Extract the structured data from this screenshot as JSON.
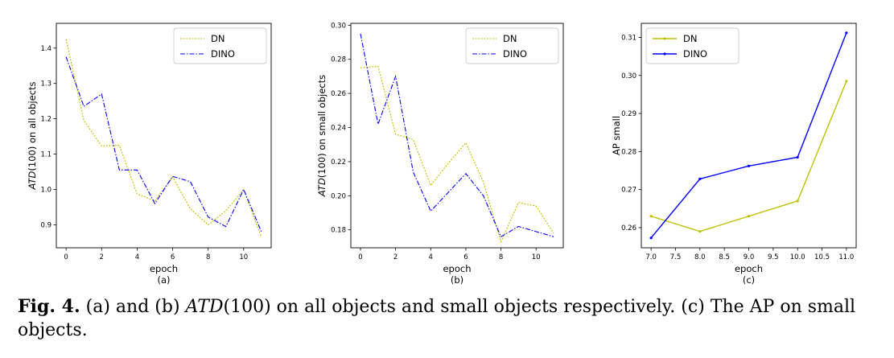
{
  "colors": {
    "DN": "#bfbf00",
    "DINO": "#0000ff"
  },
  "chart_data": [
    {
      "type": "line",
      "label": "(a)",
      "xlabel": "epoch",
      "ylabel_italic": "ATD",
      "ylabel_rest": "(100) on all objects",
      "xlim": [
        -0.55,
        11.55
      ],
      "ylim": [
        0.835,
        1.47
      ],
      "xticks": [
        0,
        2,
        4,
        6,
        8,
        10
      ],
      "yticks": [
        0.9,
        1.0,
        1.1,
        1.2,
        1.3,
        1.4
      ],
      "xtick_labels": [
        "0",
        "2",
        "4",
        "6",
        "8",
        "10"
      ],
      "ytick_labels": [
        "0.9",
        "1.0",
        "1.1",
        "1.2",
        "1.3",
        "1.4"
      ],
      "legend": "top-right",
      "markers": false,
      "series": [
        {
          "name": "DN",
          "style": "dotted",
          "x": [
            0,
            1,
            2,
            3,
            4,
            5,
            6,
            7,
            8,
            9,
            10,
            11
          ],
          "y": [
            1.425,
            1.195,
            1.123,
            1.125,
            0.987,
            0.968,
            1.035,
            0.945,
            0.9,
            0.94,
            1.0,
            0.865
          ]
        },
        {
          "name": "DINO",
          "style": "dashdot",
          "x": [
            0,
            1,
            2,
            3,
            4,
            5,
            6,
            7,
            8,
            9,
            10,
            11
          ],
          "y": [
            1.375,
            1.235,
            1.27,
            1.055,
            1.055,
            0.96,
            1.037,
            1.022,
            0.922,
            0.895,
            1.0,
            0.88
          ]
        }
      ]
    },
    {
      "type": "line",
      "label": "(b)",
      "xlabel": "epoch",
      "ylabel_italic": "ATD",
      "ylabel_rest": "(100) on small objects",
      "xlim": [
        -0.55,
        11.55
      ],
      "ylim": [
        0.1695,
        0.3011
      ],
      "xticks": [
        0,
        2,
        4,
        6,
        8,
        10
      ],
      "yticks": [
        0.18,
        0.2,
        0.22,
        0.24,
        0.26,
        0.28,
        0.3
      ],
      "xtick_labels": [
        "0",
        "2",
        "4",
        "6",
        "8",
        "10"
      ],
      "ytick_labels": [
        "0.18",
        "0.20",
        "0.22",
        "0.24",
        "0.26",
        "0.28",
        "0.30"
      ],
      "legend": "top-right",
      "markers": false,
      "series": [
        {
          "name": "DN",
          "style": "dotted",
          "x": [
            0,
            1,
            2,
            3,
            4,
            5,
            6,
            7,
            8,
            9,
            10,
            11
          ],
          "y": [
            0.275,
            0.276,
            0.236,
            0.233,
            0.206,
            0.219,
            0.231,
            0.208,
            0.173,
            0.196,
            0.194,
            0.178
          ]
        },
        {
          "name": "DINO",
          "style": "dashdot",
          "x": [
            0,
            1,
            2,
            3,
            4,
            5,
            6,
            7,
            8,
            9,
            10,
            11
          ],
          "y": [
            0.295,
            0.242,
            0.27,
            0.214,
            0.191,
            0.202,
            0.213,
            0.2,
            0.176,
            0.182,
            0.179,
            0.176
          ]
        }
      ]
    },
    {
      "type": "line",
      "label": "(c)",
      "xlabel": "epoch",
      "ylabel_italic": "",
      "ylabel_rest": "AP small",
      "xlim": [
        6.8,
        11.2
      ],
      "ylim": [
        0.2547,
        0.3137
      ],
      "xticks": [
        7.0,
        7.5,
        8.0,
        8.5,
        9.0,
        9.5,
        10.0,
        10.5,
        11.0
      ],
      "yticks": [
        0.26,
        0.27,
        0.28,
        0.29,
        0.3,
        0.31
      ],
      "xtick_labels": [
        "7.0",
        "7.5",
        "8.0",
        "8.5",
        "9.0",
        "9.5",
        "10.0",
        "10.5",
        "11.0"
      ],
      "ytick_labels": [
        "0.26",
        "0.27",
        "0.28",
        "0.29",
        "0.30",
        "0.31"
      ],
      "legend": "top-left",
      "markers": true,
      "series": [
        {
          "name": "DN",
          "style": "solid",
          "x": [
            7,
            8,
            9,
            10,
            11
          ],
          "y": [
            0.263,
            0.259,
            0.263,
            0.267,
            0.2985
          ]
        },
        {
          "name": "DINO",
          "style": "solid",
          "x": [
            7,
            8,
            9,
            10,
            11
          ],
          "y": [
            0.2573,
            0.2728,
            0.2762,
            0.2785,
            0.3112
          ]
        }
      ]
    }
  ],
  "caption": {
    "fig_label": "Fig. 4.",
    "part1": " (a) and (b) ",
    "math": "ATD",
    "part2": "(100) on all objects and small objects respectively. (c) The AP on small objects."
  }
}
